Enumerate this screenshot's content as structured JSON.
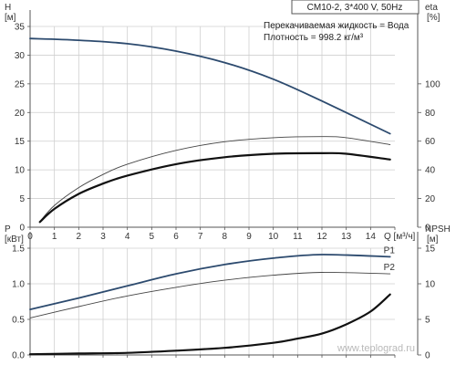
{
  "title_box": "CM10-2, 3*400 V, 50Hz",
  "info_lines": [
    "Перекачиваемая жидкость = Вода",
    "Плотность = 998.2 кг/м³"
  ],
  "watermark": "www.teplograd.ru",
  "colors": {
    "grid": "#cfcfcf",
    "axis": "#555555",
    "curve_blue": "#2c4a6e",
    "curve_black": "#111111",
    "curve_thin": "#444444"
  },
  "chart_data": [
    {
      "type": "line",
      "title": "",
      "xlabel": "Q [м³/ч]",
      "xlim": [
        0,
        15
      ],
      "x_ticks": [
        "0",
        "1",
        "2",
        "3",
        "4",
        "5",
        "6",
        "7",
        "8",
        "9",
        "10",
        "11",
        "12",
        "13",
        "14"
      ],
      "left_axis": {
        "label_top": "H",
        "label_unit": "[м]",
        "ylim": [
          0,
          35
        ],
        "ticks": [
          "0",
          "5",
          "10",
          "15",
          "20",
          "25",
          "30",
          "35"
        ]
      },
      "right_axis": {
        "label_top": "eta",
        "label_unit": "[%]",
        "ylim": [
          0,
          140
        ],
        "ticks": [
          "0",
          "20",
          "40",
          "60",
          "80",
          "100"
        ]
      },
      "grid": true,
      "series": [
        {
          "name": "",
          "axis": "left",
          "style": "blue",
          "x": [
            0,
            2,
            4,
            6,
            8,
            10,
            12,
            14.8
          ],
          "y": [
            32.9,
            32.6,
            32.0,
            30.7,
            28.7,
            25.8,
            22.0,
            16.3
          ]
        },
        {
          "name": "",
          "axis": "left",
          "style": "thin",
          "x": [
            0.4,
            1,
            2,
            3,
            4,
            6,
            8,
            10,
            12,
            13,
            14.8
          ],
          "y": [
            1.0,
            3.8,
            6.9,
            9.2,
            11.0,
            13.4,
            14.9,
            15.6,
            15.8,
            15.6,
            14.4
          ]
        },
        {
          "name": "",
          "axis": "left",
          "style": "black",
          "x": [
            0.4,
            1,
            2,
            3,
            4,
            6,
            8,
            10,
            12,
            13,
            14.8
          ],
          "y": [
            0.9,
            3.2,
            5.8,
            7.6,
            9.0,
            11.0,
            12.2,
            12.8,
            12.9,
            12.8,
            11.8
          ]
        }
      ]
    },
    {
      "type": "line",
      "title": "",
      "xlabel": "",
      "xlim": [
        0,
        15
      ],
      "left_axis": {
        "label_top": "P",
        "label_unit": "[кВт]",
        "ylim": [
          0,
          1.5
        ],
        "ticks": [
          "0.0",
          "0.5",
          "1.0",
          "1.5"
        ]
      },
      "right_axis": {
        "label_top": "NPSH",
        "label_unit": "[м]",
        "ylim": [
          0,
          15
        ],
        "ticks": [
          "0",
          "5",
          "10",
          "15"
        ]
      },
      "grid": true,
      "series": [
        {
          "name": "P1",
          "axis": "left",
          "style": "blue",
          "x": [
            0,
            2,
            4,
            6,
            8,
            10,
            12,
            14.8
          ],
          "y": [
            0.64,
            0.8,
            0.97,
            1.14,
            1.27,
            1.36,
            1.41,
            1.38
          ]
        },
        {
          "name": "P2",
          "axis": "left",
          "style": "thin",
          "x": [
            0,
            2,
            4,
            6,
            8,
            10,
            12,
            14.8
          ],
          "y": [
            0.52,
            0.68,
            0.83,
            0.95,
            1.05,
            1.12,
            1.16,
            1.14
          ]
        },
        {
          "name": "",
          "axis": "right",
          "style": "black",
          "x": [
            0,
            2,
            4,
            6,
            8,
            10,
            11,
            12,
            13,
            14,
            14.8
          ],
          "y": [
            0.1,
            0.2,
            0.3,
            0.6,
            1.0,
            1.7,
            2.3,
            3.0,
            4.3,
            6.1,
            8.5
          ]
        }
      ]
    }
  ]
}
